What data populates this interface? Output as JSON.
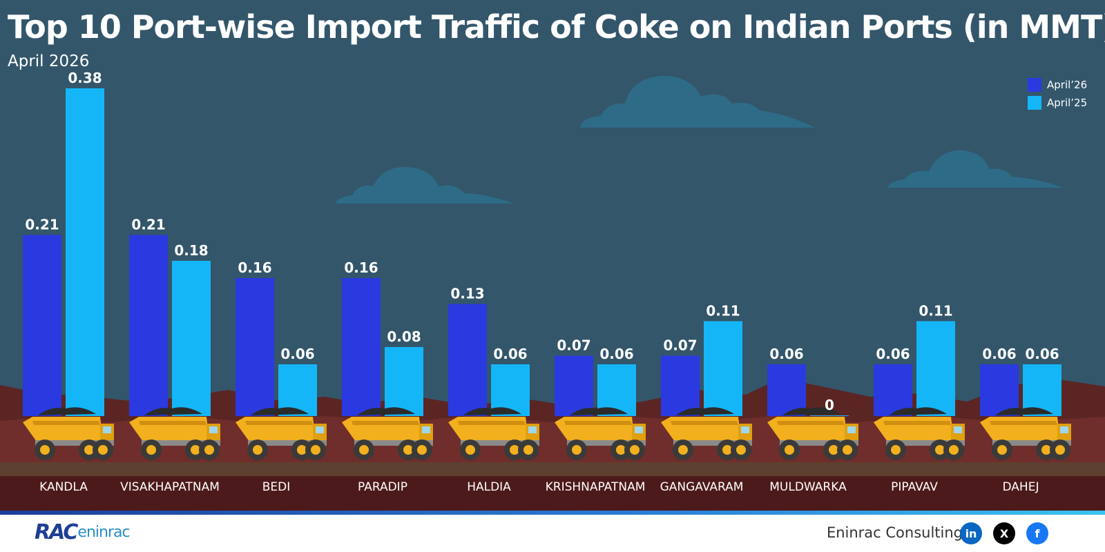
{
  "header": {
    "title": "Top 10 Port-wise Import Traffic of Coke on Indian Ports (in MMT)",
    "subtitle": "April 2026"
  },
  "legend": {
    "items": [
      {
        "label": "April’26",
        "color": "#2a3ae0"
      },
      {
        "label": "April’25",
        "color": "#15b6f7"
      }
    ]
  },
  "chart_data": {
    "type": "bar",
    "title": "Top 10 Port-wise Import Traffic of Coke on Indian Ports (in MMT)",
    "subtitle": "April 2026",
    "categories": [
      "KANDLA",
      "VISAKHAPATNAM",
      "BEDI",
      "PARADIP",
      "HALDIA",
      "KRISHNAPATNAM",
      "GANGAVARAM",
      "MULDWARKA",
      "PIPAVAV",
      "DAHEJ"
    ],
    "series": [
      {
        "name": "April’26",
        "values": [
          0.21,
          0.21,
          0.16,
          0.16,
          0.13,
          0.07,
          0.07,
          0.06,
          0.06,
          0.06
        ],
        "labels": [
          "0.21",
          "0.21",
          "0.16",
          "0.16",
          "0.13",
          "0.07",
          "0.07",
          "0.06",
          "0.06",
          "0.06"
        ],
        "color": "#2a3ae0"
      },
      {
        "name": "April’25",
        "values": [
          0.38,
          0.18,
          0.06,
          0.08,
          0.06,
          0.06,
          0.11,
          0,
          0.11,
          0.06
        ],
        "labels": [
          "0.38",
          "0.18",
          "0.06",
          "0.08",
          "0.06",
          "0.06",
          "0.11",
          "0",
          "0.11",
          "0.06"
        ],
        "color": "#15b6f7"
      }
    ],
    "ylim": [
      0,
      0.38
    ],
    "grid": false,
    "legend_position": "top-right"
  },
  "footer": {
    "brand_rac": "RAC",
    "brand_eninrac": "eninrac",
    "company": "Eninrac Consulting",
    "social": [
      {
        "icon": "linkedin-icon",
        "glyph": "in",
        "color": "#0a66c2"
      },
      {
        "icon": "x-icon",
        "glyph": "X",
        "color": "#000000"
      },
      {
        "icon": "facebook-icon",
        "glyph": "f",
        "color": "#1877f2"
      }
    ]
  }
}
